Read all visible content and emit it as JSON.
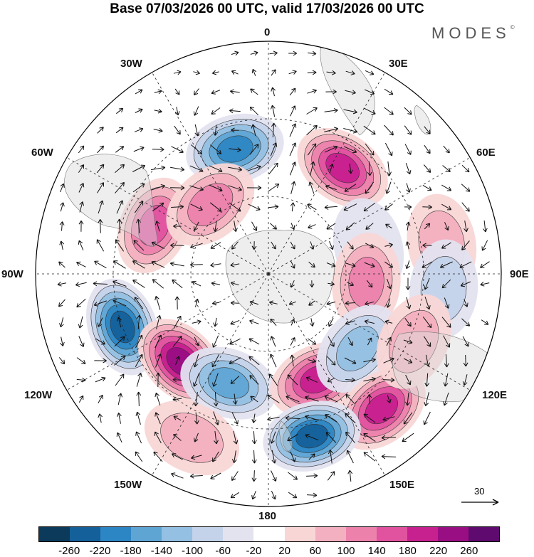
{
  "title": "Base 07/03/2026 00 UTC, valid 17/03/2026 00 UTC",
  "brand": "MODES",
  "brand_mark": "©",
  "longitude_labels": {
    "lon_0": "0",
    "lon_30e": "30E",
    "lon_60e": "60E",
    "lon_90e": "90E",
    "lon_120e": "120E",
    "lon_150e": "150E",
    "lon_180": "180",
    "lon_150w": "150W",
    "lon_120w": "120W",
    "lon_90w": "90W",
    "lon_60w": "60W",
    "lon_30w": "30W"
  },
  "reference_vector": {
    "label": "30"
  },
  "colorbar": {
    "colors": [
      "#0b3a5a",
      "#14609a",
      "#2d86c4",
      "#5fa5d4",
      "#93c0e3",
      "#c4d3ea",
      "#e3e3f0",
      "#ffffff",
      "#f9d6d6",
      "#f3b0c0",
      "#ec82ac",
      "#e1529f",
      "#c7208f",
      "#9a0e84",
      "#5e0a6e"
    ],
    "ticks": [
      "-260",
      "-220",
      "-180",
      "-140",
      "-100",
      "-60",
      "-20",
      "20",
      "60",
      "100",
      "140",
      "180",
      "220",
      "260"
    ]
  },
  "anomalies": [
    {
      "lon": 345,
      "lat": -40,
      "value": -190
    },
    {
      "lon": 35,
      "lat": -40,
      "value": 200
    },
    {
      "lon": 293,
      "lat": -42,
      "value": 160
    },
    {
      "lon": 320,
      "lat": -55,
      "value": 100
    },
    {
      "lon": 75,
      "lat": -50,
      "value": -50
    },
    {
      "lon": 80,
      "lat": -22,
      "value": 90
    },
    {
      "lon": 95,
      "lat": -22,
      "value": -80
    },
    {
      "lon": 95,
      "lat": -52,
      "value": 100
    },
    {
      "lon": 250,
      "lat": -30,
      "value": -230
    },
    {
      "lon": 225,
      "lat": -42,
      "value": 220
    },
    {
      "lon": 200,
      "lat": -45,
      "value": -140
    },
    {
      "lon": 155,
      "lat": -45,
      "value": 200
    },
    {
      "lon": 130,
      "lat": -45,
      "value": -110
    },
    {
      "lon": 140,
      "lat": -22,
      "value": 200
    },
    {
      "lon": 165,
      "lat": -25,
      "value": -240
    },
    {
      "lon": 205,
      "lat": -20,
      "value": 80
    },
    {
      "lon": 115,
      "lat": -28,
      "value": 60
    }
  ]
}
